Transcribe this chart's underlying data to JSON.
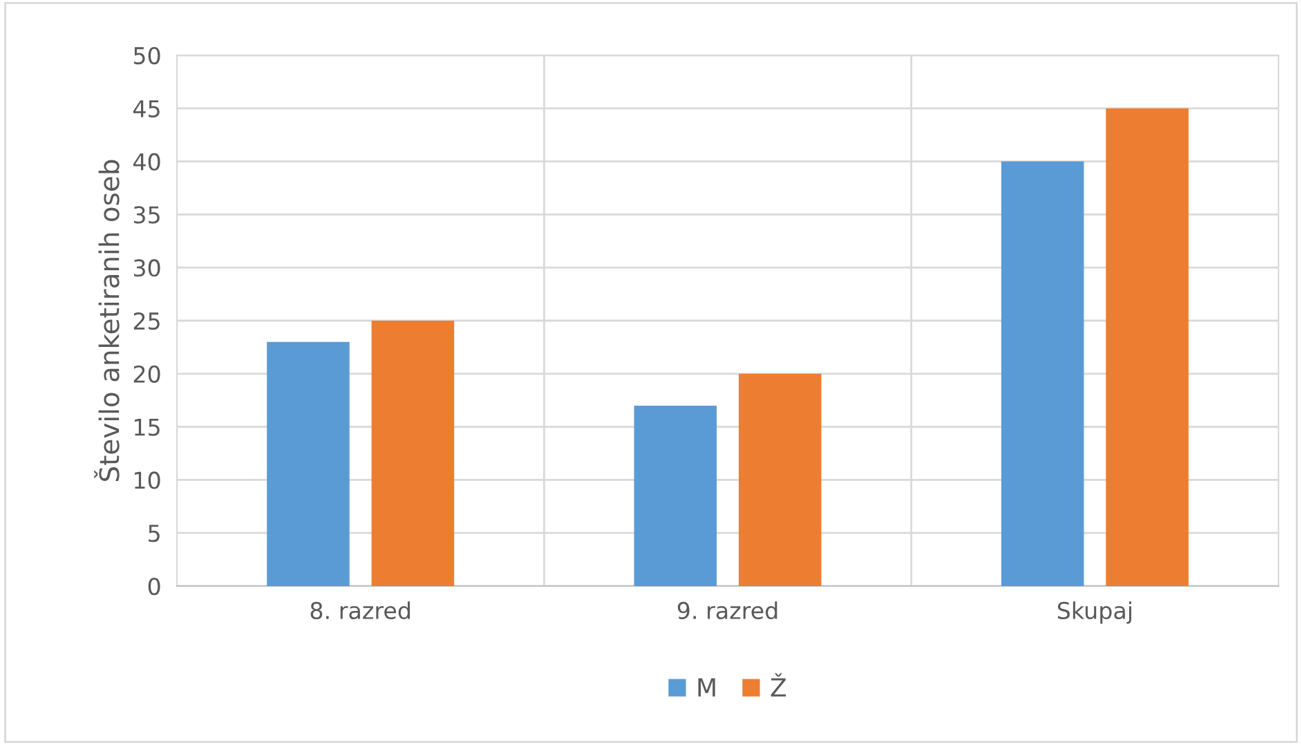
{
  "chart_data": {
    "type": "bar",
    "ylabel": "Število anketiranih oseb",
    "categories": [
      "8. razred",
      "9. razred",
      "Skupaj"
    ],
    "series": [
      {
        "name": "M",
        "color": "#5b9bd5",
        "values": [
          23,
          17,
          40
        ]
      },
      {
        "name": "Ž",
        "color": "#ed7d31",
        "values": [
          25,
          20,
          45
        ]
      }
    ],
    "ylim": [
      0,
      50
    ],
    "yticks": [
      0,
      5,
      10,
      15,
      20,
      25,
      30,
      35,
      40,
      45,
      50
    ],
    "grid": true,
    "legend": "bottom"
  }
}
